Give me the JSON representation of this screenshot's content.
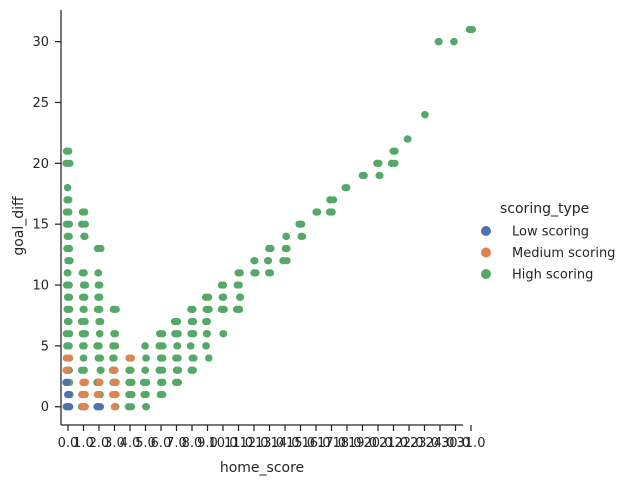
{
  "chart_data": {
    "type": "scatter",
    "title": "",
    "xlabel": "home_score",
    "ylabel": "goal_diff",
    "x_categories": [
      "0.0",
      "1.0",
      "2.0",
      "3.0",
      "4.0",
      "5.0",
      "6.0",
      "7.0",
      "8.0",
      "9.0",
      "10.0",
      "11.0",
      "12.0",
      "13.0",
      "14.0",
      "15.0",
      "16.0",
      "17.0",
      "18.0",
      "19.0",
      "20.0",
      "21.0",
      "22.0",
      "23.0",
      "24.0",
      "30.0",
      "31.0"
    ],
    "yticks": [
      0,
      5,
      10,
      15,
      20,
      25,
      30
    ],
    "ylim": [
      -1.5,
      32.6
    ],
    "grid": false,
    "legend": {
      "title": "scoring_type",
      "placement": "right",
      "entries": [
        {
          "label": "Low scoring",
          "color": "#4c72b0"
        },
        {
          "label": "Medium scoring",
          "color": "#dd8452"
        },
        {
          "label": "High scoring",
          "color": "#55a868"
        }
      ]
    },
    "series": [
      {
        "name": "Low scoring",
        "color": "#4c72b0",
        "points": [
          [
            "0.0",
            0
          ],
          [
            "0.0",
            1
          ],
          [
            "0.0",
            2
          ],
          [
            "1.0",
            0
          ],
          [
            "1.0",
            1
          ],
          [
            "2.0",
            0
          ],
          [
            "2.0",
            2
          ]
        ]
      },
      {
        "name": "Medium scoring",
        "color": "#dd8452",
        "points": [
          [
            "0.0",
            3
          ],
          [
            "0.0",
            4
          ],
          [
            "1.0",
            0
          ],
          [
            "1.0",
            1
          ],
          [
            "1.0",
            2
          ],
          [
            "2.0",
            1
          ],
          [
            "2.0",
            2
          ],
          [
            "3.0",
            0
          ],
          [
            "3.0",
            1
          ],
          [
            "3.0",
            2
          ],
          [
            "3.0",
            3
          ],
          [
            "4.0",
            4
          ]
        ]
      },
      {
        "name": "High scoring",
        "color": "#55a868",
        "points": [
          [
            "0.0",
            0
          ],
          [
            "0.0",
            1
          ],
          [
            "0.0",
            2
          ],
          [
            "0.0",
            3
          ],
          [
            "0.0",
            4
          ],
          [
            "0.0",
            5
          ],
          [
            "0.0",
            6
          ],
          [
            "0.0",
            7
          ],
          [
            "0.0",
            8
          ],
          [
            "0.0",
            9
          ],
          [
            "0.0",
            10
          ],
          [
            "0.0",
            11
          ],
          [
            "0.0",
            12
          ],
          [
            "0.0",
            13
          ],
          [
            "0.0",
            14
          ],
          [
            "0.0",
            15
          ],
          [
            "0.0",
            16
          ],
          [
            "0.0",
            17
          ],
          [
            "0.0",
            18
          ],
          [
            "0.0",
            20
          ],
          [
            "0.0",
            21
          ],
          [
            "1.0",
            0
          ],
          [
            "1.0",
            1
          ],
          [
            "1.0",
            2
          ],
          [
            "1.0",
            3
          ],
          [
            "1.0",
            4
          ],
          [
            "1.0",
            5
          ],
          [
            "1.0",
            6
          ],
          [
            "1.0",
            7
          ],
          [
            "1.0",
            8
          ],
          [
            "1.0",
            9
          ],
          [
            "1.0",
            10
          ],
          [
            "1.0",
            11
          ],
          [
            "1.0",
            14
          ],
          [
            "1.0",
            15
          ],
          [
            "1.0",
            16
          ],
          [
            "2.0",
            0
          ],
          [
            "2.0",
            1
          ],
          [
            "2.0",
            2
          ],
          [
            "2.0",
            3
          ],
          [
            "2.0",
            4
          ],
          [
            "2.0",
            5
          ],
          [
            "2.0",
            6
          ],
          [
            "2.0",
            7
          ],
          [
            "2.0",
            8
          ],
          [
            "2.0",
            9
          ],
          [
            "2.0",
            10
          ],
          [
            "2.0",
            11
          ],
          [
            "2.0",
            13
          ],
          [
            "3.0",
            0
          ],
          [
            "3.0",
            1
          ],
          [
            "3.0",
            2
          ],
          [
            "3.0",
            3
          ],
          [
            "3.0",
            4
          ],
          [
            "3.0",
            5
          ],
          [
            "3.0",
            6
          ],
          [
            "3.0",
            8
          ],
          [
            "4.0",
            0
          ],
          [
            "4.0",
            1
          ],
          [
            "4.0",
            2
          ],
          [
            "4.0",
            3
          ],
          [
            "4.0",
            4
          ],
          [
            "5.0",
            0
          ],
          [
            "5.0",
            1
          ],
          [
            "5.0",
            2
          ],
          [
            "5.0",
            3
          ],
          [
            "5.0",
            4
          ],
          [
            "5.0",
            5
          ],
          [
            "6.0",
            1
          ],
          [
            "6.0",
            2
          ],
          [
            "6.0",
            3
          ],
          [
            "6.0",
            4
          ],
          [
            "6.0",
            5
          ],
          [
            "6.0",
            6
          ],
          [
            "7.0",
            2
          ],
          [
            "7.0",
            3
          ],
          [
            "7.0",
            4
          ],
          [
            "7.0",
            5
          ],
          [
            "7.0",
            6
          ],
          [
            "7.0",
            7
          ],
          [
            "8.0",
            3
          ],
          [
            "8.0",
            4
          ],
          [
            "8.0",
            5
          ],
          [
            "8.0",
            6
          ],
          [
            "8.0",
            7
          ],
          [
            "8.0",
            8
          ],
          [
            "9.0",
            4
          ],
          [
            "9.0",
            5
          ],
          [
            "9.0",
            6
          ],
          [
            "9.0",
            7
          ],
          [
            "9.0",
            8
          ],
          [
            "9.0",
            9
          ],
          [
            "10.0",
            6
          ],
          [
            "10.0",
            8
          ],
          [
            "10.0",
            9
          ],
          [
            "10.0",
            10
          ],
          [
            "11.0",
            8
          ],
          [
            "11.0",
            9
          ],
          [
            "11.0",
            10
          ],
          [
            "11.0",
            11
          ],
          [
            "12.0",
            11
          ],
          [
            "12.0",
            12
          ],
          [
            "13.0",
            11
          ],
          [
            "13.0",
            12
          ],
          [
            "13.0",
            13
          ],
          [
            "14.0",
            12
          ],
          [
            "14.0",
            13
          ],
          [
            "14.0",
            14
          ],
          [
            "15.0",
            14
          ],
          [
            "15.0",
            15
          ],
          [
            "16.0",
            16
          ],
          [
            "17.0",
            16
          ],
          [
            "17.0",
            17
          ],
          [
            "18.0",
            18
          ],
          [
            "19.0",
            19
          ],
          [
            "20.0",
            19
          ],
          [
            "20.0",
            20
          ],
          [
            "21.0",
            20
          ],
          [
            "21.0",
            21
          ],
          [
            "22.0",
            22
          ],
          [
            "23.0",
            24
          ],
          [
            "24.0",
            30
          ],
          [
            "30.0",
            30
          ],
          [
            "31.0",
            31
          ]
        ]
      }
    ]
  }
}
